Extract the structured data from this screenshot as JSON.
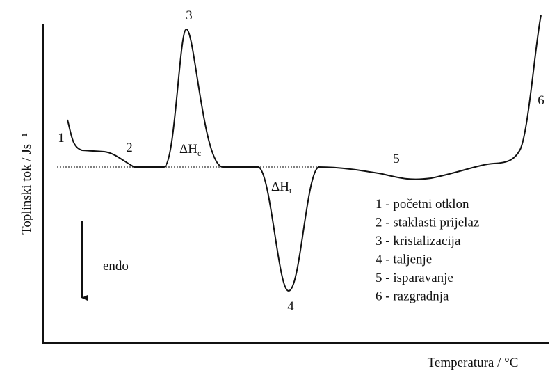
{
  "axes": {
    "y_label": "Toplinski tok / Js⁻¹",
    "x_label": "Temperatura / °C"
  },
  "points": [
    "1",
    "2",
    "3",
    "4",
    "5",
    "6"
  ],
  "enthalpies": [
    {
      "main": "ΔH",
      "sub": "c"
    },
    {
      "main": "ΔH",
      "sub": "t"
    }
  ],
  "direction": "endo",
  "legend": [
    "1 - početni otklon",
    "2 - staklasti prijelaz",
    "3 - kristalizacija",
    "4 - taljenje",
    "5 - isparavanje",
    "6 - razgradnja"
  ]
}
